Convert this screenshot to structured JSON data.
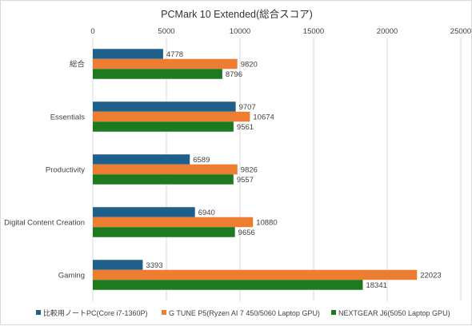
{
  "chart_data": {
    "type": "bar",
    "orientation": "horizontal",
    "title": "PCMark 10 Extended(総合スコア)",
    "xlabel": "",
    "ylabel": "",
    "xlim": [
      0,
      25000
    ],
    "x_ticks": [
      "0",
      "5000",
      "10000",
      "15000",
      "20000",
      "25000"
    ],
    "x_tick_position": "top",
    "grid": true,
    "legend_position": "bottom",
    "categories": [
      "総合",
      "Essentials",
      "Productivity",
      "Digital Content Creation",
      "Gaming"
    ],
    "series": [
      {
        "name": "比較用ノートPC(Core i7-1360P)",
        "color": "#1f5f8b",
        "values": [
          4778,
          9707,
          6589,
          6940,
          3393
        ]
      },
      {
        "name": "G TUNE P5(Ryzen AI 7 450/5060 Laptop GPU)",
        "color": "#ed7d31",
        "values": [
          9820,
          10674,
          9826,
          10880,
          22023
        ]
      },
      {
        "name": "NEXTGEAR J6(5050 Laptop GPU)",
        "color": "#1e7a1e",
        "values": [
          8796,
          9561,
          9557,
          9656,
          18341
        ]
      }
    ]
  }
}
